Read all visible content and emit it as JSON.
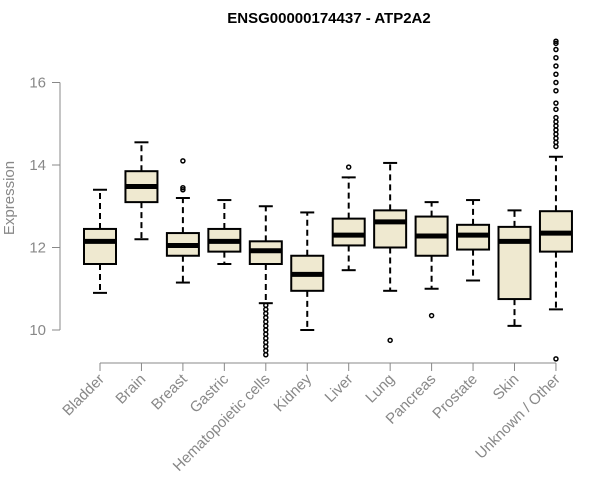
{
  "chart_data": {
    "type": "boxplot",
    "title": "ENSG00000174437 - ATP2A2",
    "ylabel": "Expression",
    "xlabel": "",
    "ylim": [
      9.2,
      17.2
    ],
    "yticks": [
      10,
      12,
      14,
      16
    ],
    "grid": false,
    "colors": {
      "box_fill": "#efe9d0",
      "box_stroke": "#000000",
      "median": "#000000",
      "axis": "#888888",
      "text": "#888888"
    },
    "categories": [
      "Bladder",
      "Brain",
      "Breast",
      "Gastric",
      "Hematopoietic cells",
      "Kidney",
      "Liver",
      "Lung",
      "Pancreas",
      "Prostate",
      "Skin",
      "Unknown / Other"
    ],
    "boxes": [
      {
        "category": "Bladder",
        "whisker_low": 10.9,
        "q1": 11.6,
        "median": 12.15,
        "q3": 12.45,
        "whisker_high": 13.4,
        "outliers": []
      },
      {
        "category": "Brain",
        "whisker_low": 12.2,
        "q1": 13.1,
        "median": 13.48,
        "q3": 13.85,
        "whisker_high": 14.55,
        "outliers": []
      },
      {
        "category": "Breast",
        "whisker_low": 11.15,
        "q1": 11.8,
        "median": 12.05,
        "q3": 12.35,
        "whisker_high": 13.2,
        "outliers": [
          13.4,
          13.45,
          14.1
        ]
      },
      {
        "category": "Gastric",
        "whisker_low": 11.6,
        "q1": 11.9,
        "median": 12.15,
        "q3": 12.45,
        "whisker_high": 13.15,
        "outliers": []
      },
      {
        "category": "Hematopoietic cells",
        "whisker_low": 10.65,
        "q1": 11.6,
        "median": 11.92,
        "q3": 12.15,
        "whisker_high": 13.0,
        "outliers": [
          9.4,
          9.5,
          9.6,
          9.7,
          9.8,
          9.9,
          10.0,
          10.1,
          10.2,
          10.3,
          10.4,
          10.5,
          10.6
        ]
      },
      {
        "category": "Kidney",
        "whisker_low": 10.0,
        "q1": 10.95,
        "median": 11.35,
        "q3": 11.8,
        "whisker_high": 12.85,
        "outliers": []
      },
      {
        "category": "Liver",
        "whisker_low": 11.45,
        "q1": 12.05,
        "median": 12.3,
        "q3": 12.7,
        "whisker_high": 13.7,
        "outliers": [
          13.95
        ]
      },
      {
        "category": "Lung",
        "whisker_low": 10.95,
        "q1": 12.0,
        "median": 12.62,
        "q3": 12.9,
        "whisker_high": 14.05,
        "outliers": [
          9.75
        ]
      },
      {
        "category": "Pancreas",
        "whisker_low": 11.0,
        "q1": 11.8,
        "median": 12.28,
        "q3": 12.75,
        "whisker_high": 13.1,
        "outliers": [
          10.35
        ]
      },
      {
        "category": "Prostate",
        "whisker_low": 11.2,
        "q1": 11.95,
        "median": 12.3,
        "q3": 12.55,
        "whisker_high": 13.15,
        "outliers": []
      },
      {
        "category": "Skin",
        "whisker_low": 10.1,
        "q1": 10.75,
        "median": 12.15,
        "q3": 12.5,
        "whisker_high": 12.9,
        "outliers": []
      },
      {
        "category": "Unknown / Other",
        "whisker_low": 10.5,
        "q1": 11.9,
        "median": 12.35,
        "q3": 12.88,
        "whisker_high": 14.2,
        "outliers": [
          9.3,
          14.45,
          14.55,
          14.65,
          14.75,
          14.85,
          14.95,
          15.05,
          15.15,
          15.35,
          15.5,
          15.8,
          16.0,
          16.2,
          16.4,
          16.6,
          16.8,
          16.95,
          17.0
        ]
      }
    ]
  }
}
